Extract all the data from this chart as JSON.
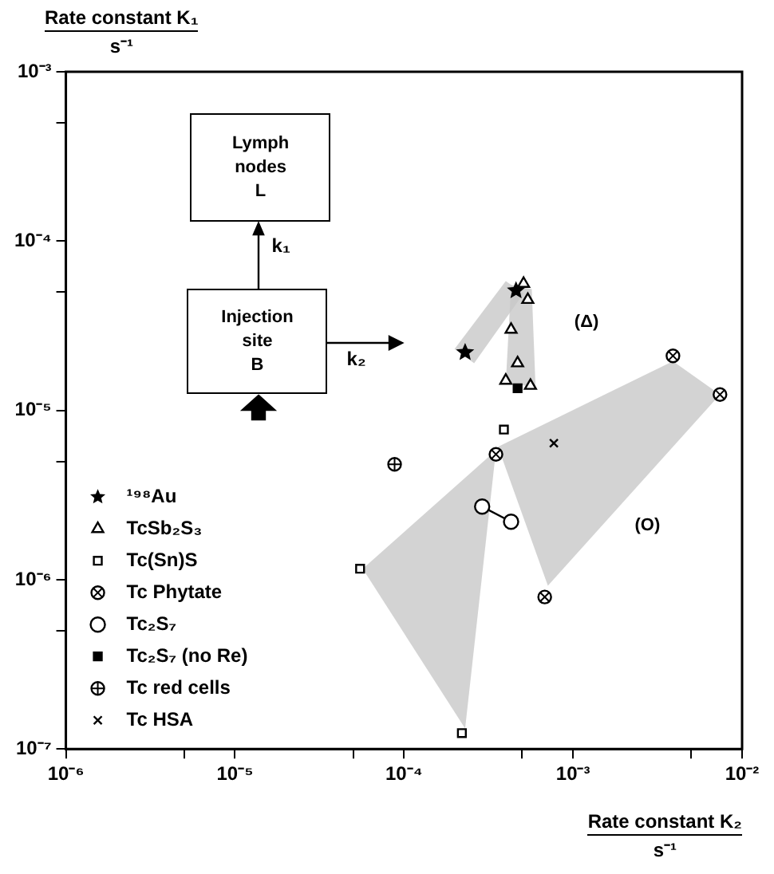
{
  "chart_data": {
    "type": "scatter",
    "log": "xy",
    "xlabel": "Rate constant K₂\ns⁻¹",
    "ylabel": "Rate constant K₁\ns⁻¹",
    "xlim": [
      1e-06,
      0.01
    ],
    "ylim": [
      1e-07,
      0.001
    ],
    "xticks": [
      {
        "value": 1e-06,
        "label": "10⁻⁶"
      },
      {
        "value": 5e-06,
        "label": null
      },
      {
        "value": 1e-05,
        "label": "10⁻⁵"
      },
      {
        "value": 5e-05,
        "label": null
      },
      {
        "value": 0.0001,
        "label": "10⁻⁴"
      },
      {
        "value": 0.0005,
        "label": null
      },
      {
        "value": 0.001,
        "label": "10⁻³"
      },
      {
        "value": 0.005,
        "label": null
      },
      {
        "value": 0.01,
        "label": "10⁻²"
      }
    ],
    "yticks": [
      {
        "value": 1e-07,
        "label": "10⁻⁷"
      },
      {
        "value": 5e-07,
        "label": null
      },
      {
        "value": 1e-06,
        "label": "10⁻⁶"
      },
      {
        "value": 5e-06,
        "label": null
      },
      {
        "value": 1e-05,
        "label": "10⁻⁵"
      },
      {
        "value": 5e-05,
        "label": null
      },
      {
        "value": 0.0001,
        "label": "10⁻⁴"
      },
      {
        "value": 0.0005,
        "label": null
      },
      {
        "value": 0.001,
        "label": "10⁻³"
      }
    ],
    "legend": "bottom left",
    "annotations": [
      "Lymph\nnodes\nL",
      "Injection\nsite\nB",
      "k₁",
      "k₂",
      "(Δ)",
      "(O)"
    ],
    "series": [
      {
        "type": "area",
        "color": "#c8c8c8",
        "x": [
          0.000199,
          0.0004,
          0.00051,
          0.00026
        ],
        "values": [
          2.3e-05,
          5.8e-05,
          4.9e-05,
          1.9e-05
        ]
      },
      {
        "type": "area",
        "color": "#c8c8c8",
        "x": [
          0.00043,
          0.00057,
          0.0006,
          0.0004
        ],
        "values": [
          5.5e-05,
          5.2e-05,
          1.38e-05,
          1.44e-05
        ]
      },
      {
        "type": "area",
        "color": "#c8c8c8",
        "x": [
          0.00036,
          0.0039,
          0.0074,
          0.00071
        ],
        "values": [
          6.1e-06,
          1.95e-05,
          1.24e-05,
          9.2e-07
        ]
      },
      {
        "type": "area",
        "color": "#c8c8c8",
        "x": [
          5.7e-05,
          0.00035,
          0.00023
        ],
        "values": [
          1.16e-06,
          5.8e-06,
          1.32e-07
        ]
      },
      {
        "name": "¹⁹⁸Au",
        "marker": "star",
        "color": "#000000",
        "x": [
          0.00023,
          0.00046
        ],
        "values": [
          2.2e-05,
          5.1e-05
        ]
      },
      {
        "name": "TcSb₂S₃",
        "marker": "triangle",
        "color": "#000000",
        "x": [
          0.00051,
          0.00054,
          0.00043,
          0.00047,
          0.0004,
          0.00056
        ],
        "values": [
          5.6e-05,
          4.5e-05,
          3e-05,
          1.9e-05,
          1.5e-05,
          1.4e-05
        ]
      },
      {
        "name": "Tc(Sn)S",
        "marker": "square",
        "color": "#000000",
        "x": [
          0.00039,
          5.5e-05,
          0.00022
        ],
        "values": [
          7.7e-06,
          1.16e-06,
          1.24e-07
        ]
      },
      {
        "name": "Tc Phytate",
        "marker": "circle-cross",
        "color": "#000000",
        "x": [
          0.0039,
          0.0074,
          0.00035,
          0.00068
        ],
        "values": [
          2.1e-05,
          1.24e-05,
          5.5e-06,
          7.9e-07
        ]
      },
      {
        "name": "Tc₂S₇",
        "type": "line",
        "marker": "circle",
        "color": "#000000",
        "x": [
          0.00029,
          0.00043
        ],
        "values": [
          2.7e-06,
          2.2e-06
        ]
      },
      {
        "name": "Tc₂S₇ (no Re)",
        "color": "#000000",
        "x": [
          0.00047
        ],
        "values": [
          1.35e-05
        ]
      },
      {
        "name": "Tc red cells",
        "marker": "circle-plus",
        "color": "#000000",
        "x": [
          8.8e-05
        ],
        "values": [
          4.8e-06
        ]
      },
      {
        "name": "Tc HSA",
        "marker": "cross",
        "color": "#000000",
        "x": [
          0.00077
        ],
        "values": [
          6.4e-06
        ]
      }
    ]
  }
}
